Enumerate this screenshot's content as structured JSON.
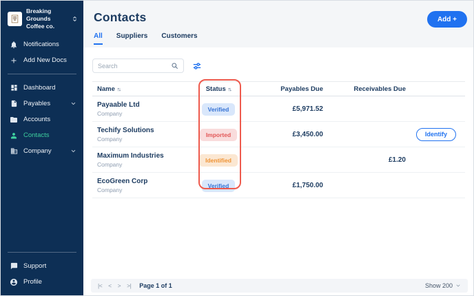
{
  "colors": {
    "sidebar_bg": "#0d2f55",
    "accent_blue": "#2072f0",
    "active_teal": "#3ecf9e",
    "navy_text": "#1d3c61",
    "annotation_red": "#ee5a4d",
    "badge_verified_bg": "#d9e7fb",
    "badge_verified_text": "#3572d4",
    "badge_imported_bg": "#f9dcdc",
    "badge_imported_text": "#e25757",
    "badge_identified_bg": "#fbe7d2",
    "badge_identified_text": "#ef9335"
  },
  "icons": {
    "sort": "↑↓"
  },
  "sidebar": {
    "org": {
      "line1": "Breaking Grounds",
      "line2": "Coffee co.",
      "switcher_icon": "chevron-updown-icon",
      "logo_icon": "org-logo"
    },
    "quick_items": [
      {
        "label": "Notifications",
        "icon": "bell-icon"
      },
      {
        "label": "Add New Docs",
        "icon": "plus-icon"
      }
    ],
    "nav_items": [
      {
        "label": "Dashboard",
        "icon": "dashboard-icon",
        "active": false,
        "expandable": false
      },
      {
        "label": "Payables",
        "icon": "document-icon",
        "active": false,
        "expandable": true
      },
      {
        "label": "Accounts",
        "icon": "folder-icon",
        "active": false,
        "expandable": false
      },
      {
        "label": "Contacts",
        "icon": "person-icon",
        "active": true,
        "expandable": false
      },
      {
        "label": "Company",
        "icon": "building-icon",
        "active": false,
        "expandable": true
      }
    ],
    "footer_items": [
      {
        "label": "Support",
        "icon": "chat-icon"
      },
      {
        "label": "Profile",
        "icon": "account-circle-icon"
      }
    ]
  },
  "header": {
    "title": "Contacts",
    "tabs": [
      {
        "label": "All",
        "active": true
      },
      {
        "label": "Suppliers",
        "active": false
      },
      {
        "label": "Customers",
        "active": false
      }
    ],
    "add_button_label": "Add +"
  },
  "toolbar": {
    "search_placeholder": "Search",
    "filter_icon": "sliders-icon"
  },
  "table": {
    "columns": [
      {
        "label": "Name",
        "sortable": true
      },
      {
        "label": "Status",
        "sortable": true
      },
      {
        "label": "Payables Due",
        "sortable": false
      },
      {
        "label": "Receivables Due",
        "sortable": false
      }
    ],
    "rows": [
      {
        "name": "Payaable Ltd",
        "subtype": "Company",
        "status": "Verified",
        "payables_due": "£5,971.52",
        "receivables_due": "",
        "action": ""
      },
      {
        "name": "Techify Solutions",
        "subtype": "Company",
        "status": "Imported",
        "payables_due": "£3,450.00",
        "receivables_due": "",
        "action": "Identify"
      },
      {
        "name": "Maximum Industries",
        "subtype": "Company",
        "status": "Identified",
        "payables_due": "",
        "receivables_due": "£1.20",
        "action": ""
      },
      {
        "name": "EcoGreen Corp",
        "subtype": "Company",
        "status": "Verified",
        "payables_due": "£1,750.00",
        "receivables_due": "",
        "action": ""
      }
    ]
  },
  "annotation": {
    "target": "status-column",
    "color": "#ee5a4d"
  },
  "pagination": {
    "first_label": "|<",
    "prev_label": "<",
    "next_label": ">",
    "last_label": ">|",
    "page_text": "Page 1 of 1",
    "show_text": "Show 200"
  }
}
